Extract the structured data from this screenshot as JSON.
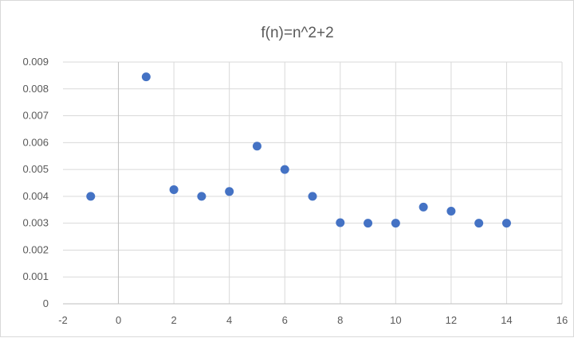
{
  "chart_data": {
    "type": "scatter",
    "title": "f(n)=n^2+2",
    "xlabel": "",
    "ylabel": "",
    "xlim": [
      -2,
      16
    ],
    "ylim": [
      0,
      0.009
    ],
    "x_ticks": [
      -2,
      0,
      2,
      4,
      6,
      8,
      10,
      12,
      14,
      16
    ],
    "y_ticks": [
      "0",
      "0.001",
      "0.002",
      "0.003",
      "0.004",
      "0.005",
      "0.006",
      "0.007",
      "0.008",
      "0.009"
    ],
    "grid": true,
    "legend": "none",
    "series": [
      {
        "color": "#4472c4",
        "points": [
          {
            "x": -1,
            "y": 0.004
          },
          {
            "x": 1,
            "y": 0.00845
          },
          {
            "x": 2,
            "y": 0.00425
          },
          {
            "x": 3,
            "y": 0.004
          },
          {
            "x": 4,
            "y": 0.00418
          },
          {
            "x": 5,
            "y": 0.00587
          },
          {
            "x": 6,
            "y": 0.005
          },
          {
            "x": 7,
            "y": 0.004
          },
          {
            "x": 8,
            "y": 0.00302
          },
          {
            "x": 9,
            "y": 0.003
          },
          {
            "x": 10,
            "y": 0.003
          },
          {
            "x": 11,
            "y": 0.0036
          },
          {
            "x": 12,
            "y": 0.00345
          },
          {
            "x": 13,
            "y": 0.003
          },
          {
            "x": 14,
            "y": 0.003
          }
        ]
      }
    ],
    "colors": {
      "gridline": "#d9d9d9",
      "axis": "#bfbfbf",
      "text": "#595959"
    }
  }
}
